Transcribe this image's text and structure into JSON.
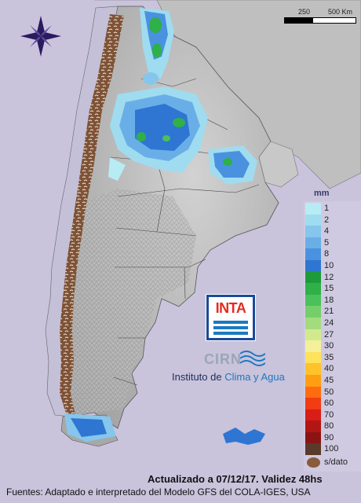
{
  "scale": {
    "label_mid": "250",
    "label_end": "500 Km"
  },
  "legend": {
    "title": "mm",
    "items": [
      {
        "label": "1",
        "color": "#b8ecf4"
      },
      {
        "label": "2",
        "color": "#9fdcef"
      },
      {
        "label": "4",
        "color": "#86c6ec"
      },
      {
        "label": "5",
        "color": "#6aaee8"
      },
      {
        "label": "8",
        "color": "#4a92e0"
      },
      {
        "label": "10",
        "color": "#2e76d2"
      },
      {
        "label": "12",
        "color": "#1e9a3a"
      },
      {
        "label": "15",
        "color": "#2fb048"
      },
      {
        "label": "18",
        "color": "#4cc05a"
      },
      {
        "label": "21",
        "color": "#74cf6a"
      },
      {
        "label": "24",
        "color": "#a2dc7e"
      },
      {
        "label": "27",
        "color": "#d2ea8e"
      },
      {
        "label": "30",
        "color": "#f4f09a"
      },
      {
        "label": "35",
        "color": "#ffe25c"
      },
      {
        "label": "40",
        "color": "#ffc22a"
      },
      {
        "label": "45",
        "color": "#ff9e12"
      },
      {
        "label": "50",
        "color": "#ff6c10"
      },
      {
        "label": "60",
        "color": "#f23c12"
      },
      {
        "label": "70",
        "color": "#d81e16"
      },
      {
        "label": "80",
        "color": "#b21614"
      },
      {
        "label": "90",
        "color": "#8a1414"
      },
      {
        "label": "100",
        "color": "#5a3a2a"
      }
    ],
    "no_data_label": "s/dato",
    "no_data_color": "#8a5a3c"
  },
  "logo": {
    "inta": "INTA",
    "cirn": "CIRN",
    "institute_prefix": "Instituto de ",
    "institute_accent": "Clima y Agua"
  },
  "footer": {
    "updated": "Actualizado a 07/12/17. Validez 48hs",
    "sources": "Fuentes: Adaptado e interpretado del Modelo GFS del COLA-IGES, USA"
  },
  "colors": {
    "background": "#c9c3dc",
    "land": "#b8b8b8",
    "brand_blue": "#1c79c0",
    "inta_red": "#e32b20"
  },
  "icons": {
    "compass": "compass-rose-icon",
    "waves": "waves-icon"
  }
}
